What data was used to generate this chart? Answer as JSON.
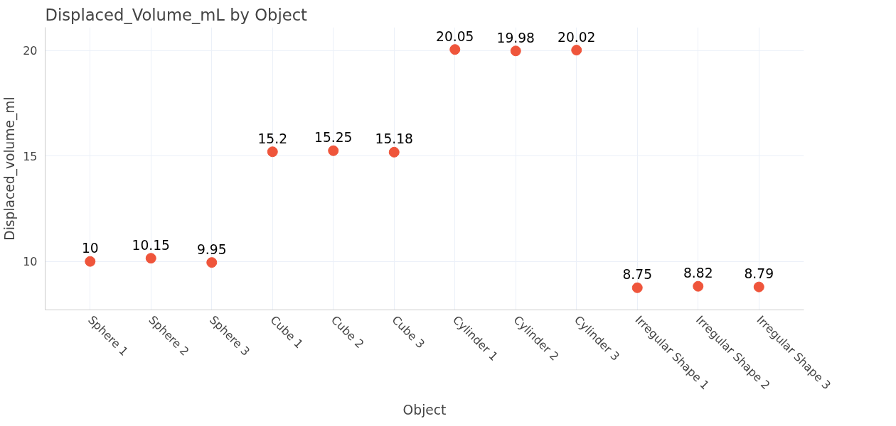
{
  "chart_data": {
    "type": "scatter",
    "title": "Displaced_Volume_mL by Object",
    "xlabel": "Object",
    "ylabel": "Displaced_volume_ml",
    "categories": [
      "Sphere 1",
      "Sphere 2",
      "Sphere 3",
      "Cube 1",
      "Cube 2",
      "Cube 3",
      "Cylinder 1",
      "Cylinder 2",
      "Cylinder 3",
      "Irregular Shape 1",
      "Irregular Shape 2",
      "Irregular Shape 3"
    ],
    "series": [
      {
        "color": "#ef553b",
        "values": [
          10,
          10.15,
          9.95,
          15.2,
          15.25,
          15.18,
          20.05,
          19.98,
          20.02,
          8.75,
          8.82,
          8.79
        ]
      }
    ],
    "ylim": [
      7.7,
      21.1
    ],
    "yticks": [
      10,
      15,
      20
    ],
    "grid": true,
    "marker": "circle",
    "data_labels": true
  }
}
